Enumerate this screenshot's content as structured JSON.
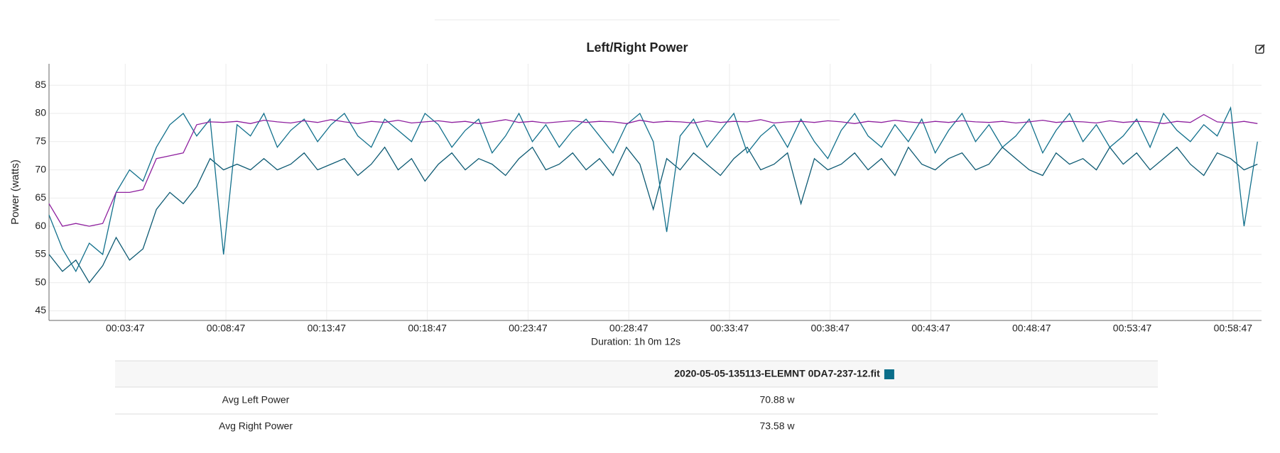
{
  "chart_data": {
    "type": "line",
    "title": "Left/Right Power",
    "y_label": "Power (watts)",
    "x_label": "Duration: 1h 0m 12s",
    "x": [
      0,
      40,
      80,
      120,
      160,
      200,
      240,
      280,
      320,
      360,
      400,
      440,
      480,
      520,
      560,
      600,
      640,
      680,
      720,
      760,
      800,
      840,
      880,
      920,
      960,
      1000,
      1040,
      1080,
      1120,
      1160,
      1200,
      1240,
      1280,
      1320,
      1360,
      1400,
      1440,
      1480,
      1520,
      1560,
      1600,
      1640,
      1680,
      1720,
      1760,
      1800,
      1840,
      1880,
      1920,
      1960,
      2000,
      2040,
      2080,
      2120,
      2160,
      2200,
      2240,
      2280,
      2320,
      2360,
      2400,
      2440,
      2480,
      2520,
      2560,
      2600,
      2640,
      2680,
      2720,
      2760,
      2800,
      2840,
      2880,
      2920,
      2960,
      3000,
      3040,
      3080,
      3120,
      3160,
      3200,
      3240,
      3280,
      3320,
      3360,
      3400,
      3440,
      3480,
      3520,
      3560,
      3600
    ],
    "xlim": [
      0,
      3612
    ],
    "xticks": [
      {
        "value": 227,
        "label": "00:03:47"
      },
      {
        "value": 527,
        "label": "00:08:47"
      },
      {
        "value": 827,
        "label": "00:13:47"
      },
      {
        "value": 1127,
        "label": "00:18:47"
      },
      {
        "value": 1427,
        "label": "00:23:47"
      },
      {
        "value": 1727,
        "label": "00:28:47"
      },
      {
        "value": 2027,
        "label": "00:33:47"
      },
      {
        "value": 2327,
        "label": "00:38:47"
      },
      {
        "value": 2627,
        "label": "00:43:47"
      },
      {
        "value": 2927,
        "label": "00:48:47"
      },
      {
        "value": 3227,
        "label": "00:53:47"
      },
      {
        "value": 3527,
        "label": "00:58:47"
      }
    ],
    "ylim": [
      43.3,
      88.8
    ],
    "yticks": [
      45,
      50,
      55,
      60,
      65,
      70,
      75,
      80,
      85
    ],
    "grid": true,
    "series": [
      {
        "color": "#8e1f9e",
        "values": [
          64,
          60,
          60.5,
          60,
          60.5,
          66,
          66,
          66.5,
          72,
          72.5,
          73,
          78,
          78.5,
          78.4,
          78.6,
          78.2,
          78.8,
          78.5,
          78.3,
          78.7,
          78.4,
          78.9,
          78.5,
          78.2,
          78.6,
          78.4,
          78.8,
          78.3,
          78.5,
          78.7,
          78.4,
          78.6,
          78.2,
          78.5,
          78.9,
          78.4,
          78.6,
          78.3,
          78.5,
          78.7,
          78.4,
          78.6,
          78.5,
          78.2,
          78.8,
          78.4,
          78.6,
          78.5,
          78.3,
          78.7,
          78.4,
          78.6,
          78.5,
          78.9,
          78.3,
          78.5,
          78.6,
          78.4,
          78.7,
          78.5,
          78.2,
          78.6,
          78.4,
          78.8,
          78.5,
          78.3,
          78.6,
          78.4,
          78.7,
          78.5,
          78.4,
          78.6,
          78.3,
          78.5,
          78.8,
          78.4,
          78.6,
          78.5,
          78.3,
          78.7,
          78.4,
          78.6,
          78.5,
          78.2,
          78.6,
          78.4,
          79.8,
          78.5,
          78.3,
          78.6,
          78.2
        ]
      },
      {
        "color": "#12708c",
        "values": [
          62,
          56,
          52,
          57,
          55,
          66,
          70,
          68,
          74,
          78,
          80,
          76,
          79,
          55,
          78,
          76,
          80,
          74,
          77,
          79,
          75,
          78,
          80,
          76,
          74,
          79,
          77,
          75,
          80,
          78,
          74,
          77,
          79,
          73,
          76,
          80,
          75,
          78,
          74,
          77,
          79,
          76,
          73,
          78,
          80,
          75,
          59,
          76,
          79,
          74,
          77,
          80,
          73,
          76,
          78,
          74,
          79,
          75,
          72,
          77,
          80,
          76,
          74,
          78,
          75,
          79,
          73,
          77,
          80,
          75,
          78,
          74,
          76,
          79,
          73,
          77,
          80,
          75,
          78,
          74,
          76,
          79,
          74,
          80,
          77,
          75,
          78,
          76,
          81,
          60,
          75
        ]
      },
      {
        "color": "#0d5a73",
        "values": [
          55,
          52,
          54,
          50,
          53,
          58,
          54,
          56,
          63,
          66,
          64,
          67,
          72,
          70,
          71,
          70,
          72,
          70,
          71,
          73,
          70,
          71,
          72,
          69,
          71,
          74,
          70,
          72,
          68,
          71,
          73,
          70,
          72,
          71,
          69,
          72,
          74,
          70,
          71,
          73,
          70,
          72,
          69,
          74,
          71,
          63,
          72,
          70,
          73,
          71,
          69,
          72,
          74,
          70,
          71,
          73,
          64,
          72,
          70,
          71,
          73,
          70,
          72,
          69,
          74,
          71,
          70,
          72,
          73,
          70,
          71,
          74,
          72,
          70,
          69,
          73,
          71,
          72,
          70,
          74,
          71,
          73,
          70,
          72,
          74,
          71,
          69,
          73,
          72,
          70,
          71
        ]
      }
    ]
  },
  "table": {
    "header": "2020-05-05-135113-ELEMNT 0DA7-237-12.fit",
    "header_color": "#0a6e8a",
    "rows": [
      [
        "Avg Left Power",
        "70.88 w"
      ],
      [
        "Avg Right Power",
        "73.58 w"
      ]
    ]
  }
}
